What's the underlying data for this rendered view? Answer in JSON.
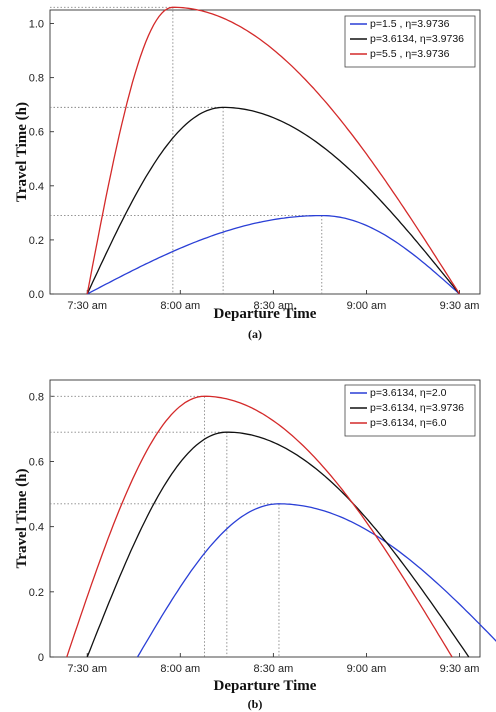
{
  "chart_data": [
    {
      "type": "line",
      "caption": "(a)",
      "xlabel": "Departure Time",
      "ylabel": "Travel Time (h)",
      "x_ticks": [
        "7:30 am",
        "8:00 am",
        "8:30 am",
        "9:00 am",
        "9:30 am"
      ],
      "x_range_hours": [
        7.5,
        9.5
      ],
      "ylim": [
        0,
        1.05
      ],
      "y_ticks": [
        "0.0",
        "0.2",
        "0.4",
        "0.6",
        "0.8",
        "1.0"
      ],
      "y_tick_values": [
        0,
        0.2,
        0.4,
        0.6,
        0.8,
        1.0
      ],
      "legend_position": "top-right",
      "series": [
        {
          "name": "p=1.5       , η=3.9736",
          "color": "#2a3fd6",
          "p": 1.5,
          "eta": 3.9736,
          "start": 7.5,
          "end": 9.5,
          "peak_time": 8.76,
          "peak_value": 0.29
        },
        {
          "name": "p=3.6134, η=3.9736",
          "color": "#111111",
          "p": 3.6134,
          "eta": 3.9736,
          "start": 7.5,
          "end": 9.5,
          "peak_time": 8.23,
          "peak_value": 0.69
        },
        {
          "name": "p=5.5       , η=3.9736",
          "color": "#d42a2a",
          "p": 5.5,
          "eta": 3.9736,
          "start": 7.5,
          "end": 9.5,
          "peak_time": 7.96,
          "peak_value": 1.06
        }
      ]
    },
    {
      "type": "line",
      "caption": "(b)",
      "xlabel": "Departure Time",
      "ylabel": "Travel Time (h)",
      "x_ticks": [
        "7:30 am",
        "8:00 am",
        "8:30 am",
        "9:00 am",
        "9:30 am"
      ],
      "x_range_hours": [
        7.5,
        9.5
      ],
      "ylim": [
        0,
        0.85
      ],
      "y_ticks": [
        "0",
        "0.2",
        "0.4",
        "0.6",
        "0.8"
      ],
      "y_tick_values": [
        0,
        0.2,
        0.4,
        0.6,
        0.8
      ],
      "legend_position": "top-right",
      "series": [
        {
          "name": "p=3.6134, η=2.0",
          "color": "#2a3fd6",
          "p": 3.6134,
          "eta": 2.0,
          "start": 7.77,
          "end": 9.78,
          "peak_time": 8.53,
          "peak_value": 0.47
        },
        {
          "name": "p=3.6134, η=3.9736",
          "color": "#111111",
          "p": 3.6134,
          "eta": 3.9736,
          "start": 7.5,
          "end": 9.55,
          "peak_time": 8.25,
          "peak_value": 0.69
        },
        {
          "name": "p=3.6134, η=6.0",
          "color": "#d42a2a",
          "p": 3.6134,
          "eta": 6.0,
          "start": 7.39,
          "end": 9.46,
          "peak_time": 8.13,
          "peak_value": 0.8
        }
      ]
    }
  ]
}
